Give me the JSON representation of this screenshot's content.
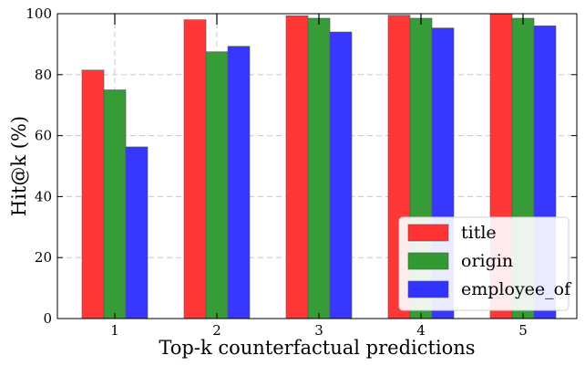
{
  "chart_data": {
    "type": "bar",
    "xlabel": "Top-k counterfactual predictions",
    "ylabel": "Hit@k (%)",
    "categories": [
      "1",
      "2",
      "3",
      "4",
      "5"
    ],
    "ylim": [
      0,
      100
    ],
    "yticks": [
      "0",
      "20",
      "40",
      "60",
      "80",
      "100"
    ],
    "grid": true,
    "legend_position": "bottom-right",
    "series": [
      {
        "name": "title",
        "color": "#ff3333",
        "values": [
          81.5,
          98.0,
          99.3,
          99.5,
          100.0
        ]
      },
      {
        "name": "origin",
        "color": "#339933",
        "values": [
          75.0,
          87.5,
          98.5,
          98.5,
          98.5
        ]
      },
      {
        "name": "employee_of",
        "color": "#3333ff",
        "values": [
          56.3,
          89.3,
          94.0,
          95.3,
          96.0
        ]
      }
    ]
  }
}
